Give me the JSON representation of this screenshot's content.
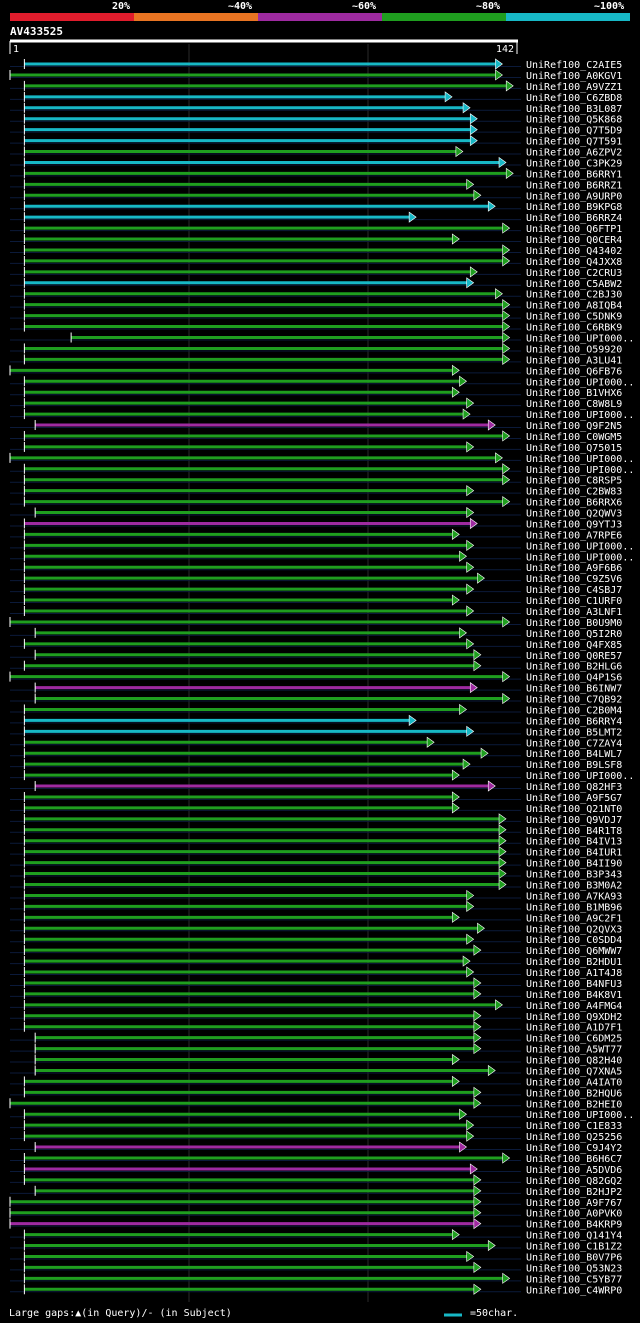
{
  "legend": {
    "segments": [
      {
        "label": "20%",
        "color": "#e01c2c"
      },
      {
        "label": "~40%",
        "color": "#e87422"
      },
      {
        "label": "~60%",
        "color": "#9e2aa0"
      },
      {
        "label": "~80%",
        "color": "#1f9e1f"
      },
      {
        "label": "~100%",
        "color": "#17b8c6"
      }
    ]
  },
  "query": {
    "id": "AV433525",
    "start": "1",
    "end": "142"
  },
  "footer": {
    "gaps": "Large gaps:▲(in Query)/- (in Subject)",
    "scale": "=50char."
  },
  "chart_data": {
    "type": "alignment-overview",
    "query_length": 142,
    "scale_note": "=50char.",
    "colors": {
      "cyan": "#17b8c6",
      "green": "#1f9e1f",
      "purple": "#9e2aa0"
    },
    "hits": [
      {
        "name": "UniRef100_C2AIE5",
        "c": "cyan",
        "s": 5,
        "e": 136
      },
      {
        "name": "UniRef100_A0KGV1",
        "c": "green",
        "s": 1,
        "e": 136
      },
      {
        "name": "UniRef100_A9VZZ1",
        "c": "green",
        "s": 5,
        "e": 139
      },
      {
        "name": "UniRef100_C6ZBD8",
        "c": "cyan",
        "s": 5,
        "e": 122
      },
      {
        "name": "UniRef100_B3L087",
        "c": "cyan",
        "s": 5,
        "e": 127
      },
      {
        "name": "UniRef100_Q5K868",
        "c": "cyan",
        "s": 5,
        "e": 129
      },
      {
        "name": "UniRef100_Q7T5D9",
        "c": "cyan",
        "s": 5,
        "e": 129
      },
      {
        "name": "UniRef100_Q7T591",
        "c": "cyan",
        "s": 5,
        "e": 129
      },
      {
        "name": "UniRef100_A6ZPV2",
        "c": "green",
        "s": 5,
        "e": 125
      },
      {
        "name": "UniRef100_C3PK29",
        "c": "cyan",
        "s": 5,
        "e": 137
      },
      {
        "name": "UniRef100_B6RRY1",
        "c": "green",
        "s": 5,
        "e": 139
      },
      {
        "name": "UniRef100_B6RRZ1",
        "c": "green",
        "s": 5,
        "e": 128
      },
      {
        "name": "UniRef100_A9URP0",
        "c": "green",
        "s": 5,
        "e": 130
      },
      {
        "name": "UniRef100_B9KPG8",
        "c": "cyan",
        "s": 5,
        "e": 134
      },
      {
        "name": "UniRef100_B6RRZ4",
        "c": "cyan",
        "s": 5,
        "e": 112
      },
      {
        "name": "UniRef100_Q6FTP1",
        "c": "green",
        "s": 5,
        "e": 138
      },
      {
        "name": "UniRef100_Q0CER4",
        "c": "green",
        "s": 5,
        "e": 124
      },
      {
        "name": "UniRef100_Q43402",
        "c": "green",
        "s": 5,
        "e": 138
      },
      {
        "name": "UniRef100_Q4JXX8",
        "c": "green",
        "s": 5,
        "e": 138
      },
      {
        "name": "UniRef100_C2CRU3",
        "c": "green",
        "s": 5,
        "e": 129
      },
      {
        "name": "UniRef100_C5ABW2",
        "c": "cyan",
        "s": 5,
        "e": 128
      },
      {
        "name": "UniRef100_C2BJ30",
        "c": "green",
        "s": 5,
        "e": 136
      },
      {
        "name": "UniRef100_A8IQB4",
        "c": "green",
        "s": 5,
        "e": 138
      },
      {
        "name": "UniRef100_C5DNK9",
        "c": "green",
        "s": 5,
        "e": 138
      },
      {
        "name": "UniRef100_C6RBK9",
        "c": "green",
        "s": 5,
        "e": 138
      },
      {
        "name": "UniRef100_UPI000..",
        "c": "green",
        "s": 18,
        "e": 138
      },
      {
        "name": "UniRef100_O59920",
        "c": "green",
        "s": 5,
        "e": 138
      },
      {
        "name": "UniRef100_A3LU41",
        "c": "green",
        "s": 5,
        "e": 138
      },
      {
        "name": "UniRef100_Q6FB76",
        "c": "green",
        "s": 1,
        "e": 124
      },
      {
        "name": "UniRef100_UPI000..",
        "c": "green",
        "s": 5,
        "e": 126
      },
      {
        "name": "UniRef100_B1VHX6",
        "c": "green",
        "s": 5,
        "e": 124
      },
      {
        "name": "UniRef100_C8W8L9",
        "c": "green",
        "s": 5,
        "e": 128
      },
      {
        "name": "UniRef100_UPI000..",
        "c": "green",
        "s": 5,
        "e": 127
      },
      {
        "name": "UniRef100_Q9F2N5",
        "c": "purple",
        "s": 8,
        "e": 134
      },
      {
        "name": "UniRef100_C0WGM5",
        "c": "green",
        "s": 5,
        "e": 138
      },
      {
        "name": "UniRef100_Q75015",
        "c": "green",
        "s": 5,
        "e": 128
      },
      {
        "name": "UniRef100_UPI000..",
        "c": "green",
        "s": 1,
        "e": 136
      },
      {
        "name": "UniRef100_UPI000..",
        "c": "green",
        "s": 5,
        "e": 138
      },
      {
        "name": "UniRef100_C8RSP5",
        "c": "green",
        "s": 5,
        "e": 138
      },
      {
        "name": "UniRef100_C2BW83",
        "c": "green",
        "s": 5,
        "e": 128
      },
      {
        "name": "UniRef100_B6RRX6",
        "c": "green",
        "s": 5,
        "e": 138
      },
      {
        "name": "UniRef100_Q2QWV3",
        "c": "green",
        "s": 8,
        "e": 128
      },
      {
        "name": "UniRef100_Q9YTJ3",
        "c": "purple",
        "s": 5,
        "e": 129
      },
      {
        "name": "UniRef100_A7RPE6",
        "c": "green",
        "s": 5,
        "e": 124
      },
      {
        "name": "UniRef100_UPI000..",
        "c": "green",
        "s": 5,
        "e": 128
      },
      {
        "name": "UniRef100_UPI000..",
        "c": "green",
        "s": 5,
        "e": 126
      },
      {
        "name": "UniRef100_A9F6B6",
        "c": "green",
        "s": 5,
        "e": 128
      },
      {
        "name": "UniRef100_C9Z5V6",
        "c": "green",
        "s": 5,
        "e": 131
      },
      {
        "name": "UniRef100_C4SBJ7",
        "c": "green",
        "s": 5,
        "e": 128
      },
      {
        "name": "UniRef100_C1URF0",
        "c": "green",
        "s": 5,
        "e": 124
      },
      {
        "name": "UniRef100_A3LNF1",
        "c": "green",
        "s": 5,
        "e": 128
      },
      {
        "name": "UniRef100_B0U9M0",
        "c": "green",
        "s": 1,
        "e": 138
      },
      {
        "name": "UniRef100_Q5I2R0",
        "c": "green",
        "s": 8,
        "e": 126
      },
      {
        "name": "UniRef100_Q4FX85",
        "c": "green",
        "s": 5,
        "e": 128
      },
      {
        "name": "UniRef100_Q0RE57",
        "c": "green",
        "s": 8,
        "e": 130
      },
      {
        "name": "UniRef100_B2HLG6",
        "c": "green",
        "s": 5,
        "e": 130
      },
      {
        "name": "UniRef100_Q4P1S6",
        "c": "green",
        "s": 1,
        "e": 138
      },
      {
        "name": "UniRef100_B6INW7",
        "c": "purple",
        "s": 8,
        "e": 129
      },
      {
        "name": "UniRef100_C7QB92",
        "c": "green",
        "s": 8,
        "e": 138
      },
      {
        "name": "UniRef100_C2B0M4",
        "c": "green",
        "s": 5,
        "e": 126
      },
      {
        "name": "UniRef100_B6RRY4",
        "c": "cyan",
        "s": 5,
        "e": 112
      },
      {
        "name": "UniRef100_B5LMT2",
        "c": "cyan",
        "s": 5,
        "e": 128
      },
      {
        "name": "UniRef100_C7ZAY4",
        "c": "green",
        "s": 5,
        "e": 117
      },
      {
        "name": "UniRef100_B4LWL7",
        "c": "green",
        "s": 5,
        "e": 132
      },
      {
        "name": "UniRef100_B9LSF8",
        "c": "green",
        "s": 5,
        "e": 127
      },
      {
        "name": "UniRef100_UPI000..",
        "c": "green",
        "s": 5,
        "e": 124
      },
      {
        "name": "UniRef100_Q82HF3",
        "c": "purple",
        "s": 8,
        "e": 134
      },
      {
        "name": "UniRef100_A9F5G7",
        "c": "green",
        "s": 5,
        "e": 124
      },
      {
        "name": "UniRef100_Q21NT0",
        "c": "green",
        "s": 5,
        "e": 124
      },
      {
        "name": "UniRef100_Q9VDJ7",
        "c": "green",
        "s": 5,
        "e": 137
      },
      {
        "name": "UniRef100_B4R1T8",
        "c": "green",
        "s": 5,
        "e": 137
      },
      {
        "name": "UniRef100_B4IV13",
        "c": "green",
        "s": 5,
        "e": 137
      },
      {
        "name": "UniRef100_B4IUR1",
        "c": "green",
        "s": 5,
        "e": 137
      },
      {
        "name": "UniRef100_B4II90",
        "c": "green",
        "s": 5,
        "e": 137
      },
      {
        "name": "UniRef100_B3P343",
        "c": "green",
        "s": 5,
        "e": 137
      },
      {
        "name": "UniRef100_B3M0A2",
        "c": "green",
        "s": 5,
        "e": 137
      },
      {
        "name": "UniRef100_A7KA93",
        "c": "green",
        "s": 5,
        "e": 128
      },
      {
        "name": "UniRef100_B1MB96",
        "c": "green",
        "s": 5,
        "e": 128
      },
      {
        "name": "UniRef100_A9C2F1",
        "c": "green",
        "s": 5,
        "e": 124
      },
      {
        "name": "UniRef100_Q2QVX3",
        "c": "green",
        "s": 5,
        "e": 131
      },
      {
        "name": "UniRef100_C0SDD4",
        "c": "green",
        "s": 5,
        "e": 128
      },
      {
        "name": "UniRef100_Q6MWW7",
        "c": "green",
        "s": 5,
        "e": 130
      },
      {
        "name": "UniRef100_B2HDU1",
        "c": "green",
        "s": 5,
        "e": 127
      },
      {
        "name": "UniRef100_A1T4J8",
        "c": "green",
        "s": 5,
        "e": 128
      },
      {
        "name": "UniRef100_B4NFU3",
        "c": "green",
        "s": 5,
        "e": 130
      },
      {
        "name": "UniRef100_B4K8V1",
        "c": "green",
        "s": 5,
        "e": 130
      },
      {
        "name": "UniRef100_A4FMG4",
        "c": "green",
        "s": 5,
        "e": 136
      },
      {
        "name": "UniRef100_Q9XDH2",
        "c": "green",
        "s": 5,
        "e": 130
      },
      {
        "name": "UniRef100_A1D7F1",
        "c": "green",
        "s": 5,
        "e": 130
      },
      {
        "name": "UniRef100_C6DM25",
        "c": "green",
        "s": 8,
        "e": 130
      },
      {
        "name": "UniRef100_A5WT77",
        "c": "green",
        "s": 8,
        "e": 130
      },
      {
        "name": "UniRef100_Q82H40",
        "c": "green",
        "s": 8,
        "e": 124
      },
      {
        "name": "UniRef100_Q7XNA5",
        "c": "green",
        "s": 8,
        "e": 134
      },
      {
        "name": "UniRef100_A4IAT0",
        "c": "green",
        "s": 5,
        "e": 124
      },
      {
        "name": "UniRef100_B2HQU6",
        "c": "green",
        "s": 5,
        "e": 130
      },
      {
        "name": "UniRef100_B2HEI0",
        "c": "green",
        "s": 1,
        "e": 130
      },
      {
        "name": "UniRef100_UPI000..",
        "c": "green",
        "s": 5,
        "e": 126
      },
      {
        "name": "UniRef100_C1E833",
        "c": "green",
        "s": 5,
        "e": 128
      },
      {
        "name": "UniRef100_Q25256",
        "c": "green",
        "s": 5,
        "e": 128
      },
      {
        "name": "UniRef100_C9J4Y2",
        "c": "purple",
        "s": 8,
        "e": 126
      },
      {
        "name": "UniRef100_B6H6C7",
        "c": "green",
        "s": 5,
        "e": 138
      },
      {
        "name": "UniRef100_A5DVD6",
        "c": "purple",
        "s": 5,
        "e": 129
      },
      {
        "name": "UniRef100_Q82GQ2",
        "c": "green",
        "s": 5,
        "e": 130
      },
      {
        "name": "UniRef100_B2HJP2",
        "c": "green",
        "s": 8,
        "e": 130
      },
      {
        "name": "UniRef100_A9F767",
        "c": "green",
        "s": 1,
        "e": 130
      },
      {
        "name": "UniRef100_A0PVK0",
        "c": "green",
        "s": 1,
        "e": 130
      },
      {
        "name": "UniRef100_B4KRP9",
        "c": "purple",
        "s": 1,
        "e": 130
      },
      {
        "name": "UniRef100_Q141Y4",
        "c": "green",
        "s": 5,
        "e": 124
      },
      {
        "name": "UniRef100_C1B1Z2",
        "c": "green",
        "s": 5,
        "e": 134
      },
      {
        "name": "UniRef100_B0V7P6",
        "c": "green",
        "s": 5,
        "e": 128
      },
      {
        "name": "UniRef100_Q53N23",
        "c": "green",
        "s": 5,
        "e": 130
      },
      {
        "name": "UniRef100_C5YB77",
        "c": "green",
        "s": 5,
        "e": 138
      },
      {
        "name": "UniRef100_C4WRP0",
        "c": "green",
        "s": 5,
        "e": 130
      }
    ]
  }
}
